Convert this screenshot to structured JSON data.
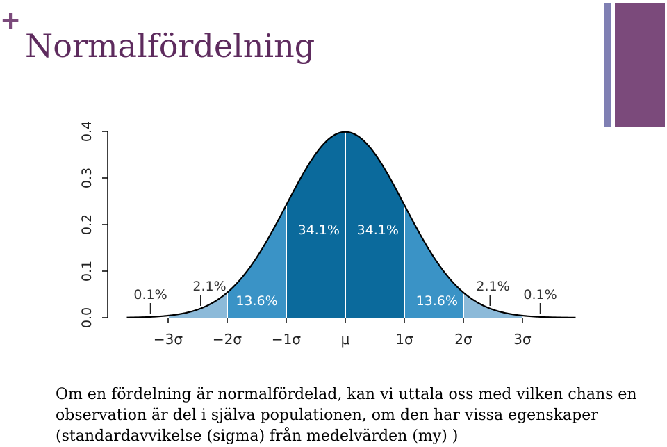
{
  "slide": {
    "plus_symbol": "+",
    "title": "Normalfördelning",
    "body": "Om en fördelning är normalfördelad, kan vi uttala oss med vilken chans en observation är del i själva populationen, om den har vissa egenskaper (standardavvikelse (sigma) från medelvärden (my) )",
    "colors": {
      "accent": "#7b4a7b",
      "accent_light": "#7f7fb3",
      "title": "#5e2b5e"
    }
  },
  "chart_data": {
    "type": "area",
    "title": "",
    "xlabel": "",
    "ylabel": "",
    "xlim": [
      -3.7,
      3.9
    ],
    "ylim": [
      0,
      0.4
    ],
    "yticks": [
      "0.0",
      "0.1",
      "0.2",
      "0.3",
      "0.4"
    ],
    "xticks": [
      "−3σ",
      "−2σ",
      "−1σ",
      "μ",
      "1σ",
      "2σ",
      "3σ"
    ],
    "bands": [
      {
        "from": -3,
        "to": -2,
        "percent": "2.1%",
        "color": "#8cbad9"
      },
      {
        "from": -2,
        "to": -1,
        "percent": "13.6%",
        "color": "#3a93c6"
      },
      {
        "from": -1,
        "to": 0,
        "percent": "34.1%",
        "color": "#0b6a9c"
      },
      {
        "from": 0,
        "to": 1,
        "percent": "34.1%",
        "color": "#0b6a9c"
      },
      {
        "from": 1,
        "to": 2,
        "percent": "13.6%",
        "color": "#3a93c6"
      },
      {
        "from": 2,
        "to": 3,
        "percent": "2.1%",
        "color": "#8cbad9"
      }
    ],
    "tail_labels": [
      {
        "x": -3.3,
        "text": "0.1%"
      },
      {
        "x": 3.3,
        "text": "0.1%"
      }
    ],
    "curve_color": "#000000",
    "divider_color": "#ffffff"
  }
}
